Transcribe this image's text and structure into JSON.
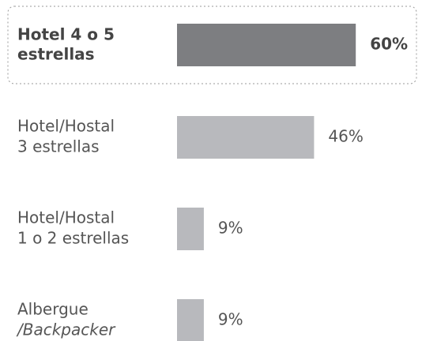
{
  "chart_data": {
    "type": "hbar",
    "categories": [
      [
        "Hotel 4 o 5",
        "estrellas"
      ],
      [
        "Hotel/Hostal",
        "3 estrellas"
      ],
      [
        "Hotel/Hostal",
        "1 o 2 estrellas"
      ],
      [
        "Albergue",
        "/Backpacker"
      ]
    ],
    "values": [
      60,
      46,
      9,
      9
    ],
    "value_labels": [
      "60%",
      "46%",
      "9%",
      "9%"
    ],
    "colors": [
      "#7d7e81",
      "#b8b9bd",
      "#b8b9bd",
      "#b8b9bd"
    ]
  }
}
